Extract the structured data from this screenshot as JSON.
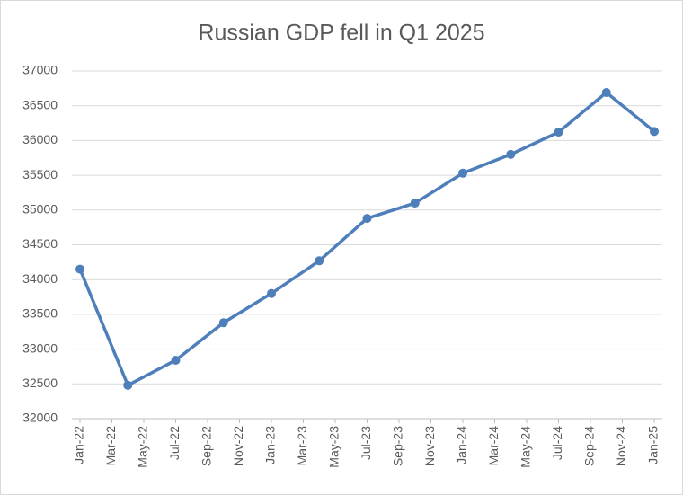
{
  "chart_data": {
    "type": "line",
    "title": "Russian GDP fell in Q1 2025",
    "x": [
      "2022-01",
      "2022-04",
      "2022-07",
      "2022-10",
      "2023-01",
      "2023-04",
      "2023-07",
      "2023-10",
      "2024-01",
      "2024-04",
      "2024-07",
      "2024-10",
      "2025-01"
    ],
    "values": [
      34150,
      32480,
      32840,
      33380,
      33800,
      34270,
      34880,
      35100,
      35530,
      35800,
      36120,
      36690,
      36130
    ],
    "color": "#4f7fba",
    "xlim": [
      "2022-01",
      "2025-01"
    ],
    "xticks": [
      {
        "value": "2022-01",
        "label": "Jan-22"
      },
      {
        "value": "2022-03",
        "label": "Mar-22"
      },
      {
        "value": "2022-05",
        "label": "May-22"
      },
      {
        "value": "2022-07",
        "label": "Jul-22"
      },
      {
        "value": "2022-09",
        "label": "Sep-22"
      },
      {
        "value": "2022-11",
        "label": "Nov-22"
      },
      {
        "value": "2023-01",
        "label": "Jan-23"
      },
      {
        "value": "2023-03",
        "label": "Mar-23"
      },
      {
        "value": "2023-05",
        "label": "May-23"
      },
      {
        "value": "2023-07",
        "label": "Jul-23"
      },
      {
        "value": "2023-09",
        "label": "Sep-23"
      },
      {
        "value": "2023-11",
        "label": "Nov-23"
      },
      {
        "value": "2024-01",
        "label": "Jan-24"
      },
      {
        "value": "2024-03",
        "label": "Mar-24"
      },
      {
        "value": "2024-05",
        "label": "May-24"
      },
      {
        "value": "2024-07",
        "label": "Jul-24"
      },
      {
        "value": "2024-09",
        "label": "Sep-24"
      },
      {
        "value": "2024-11",
        "label": "Nov-24"
      },
      {
        "value": "2025-01",
        "label": "Jan-25"
      }
    ],
    "ylim": [
      32000,
      37000
    ],
    "yticks": [
      32000,
      32500,
      33000,
      33500,
      34000,
      34500,
      35000,
      35500,
      36000,
      36500,
      37000
    ],
    "grid": true
  }
}
